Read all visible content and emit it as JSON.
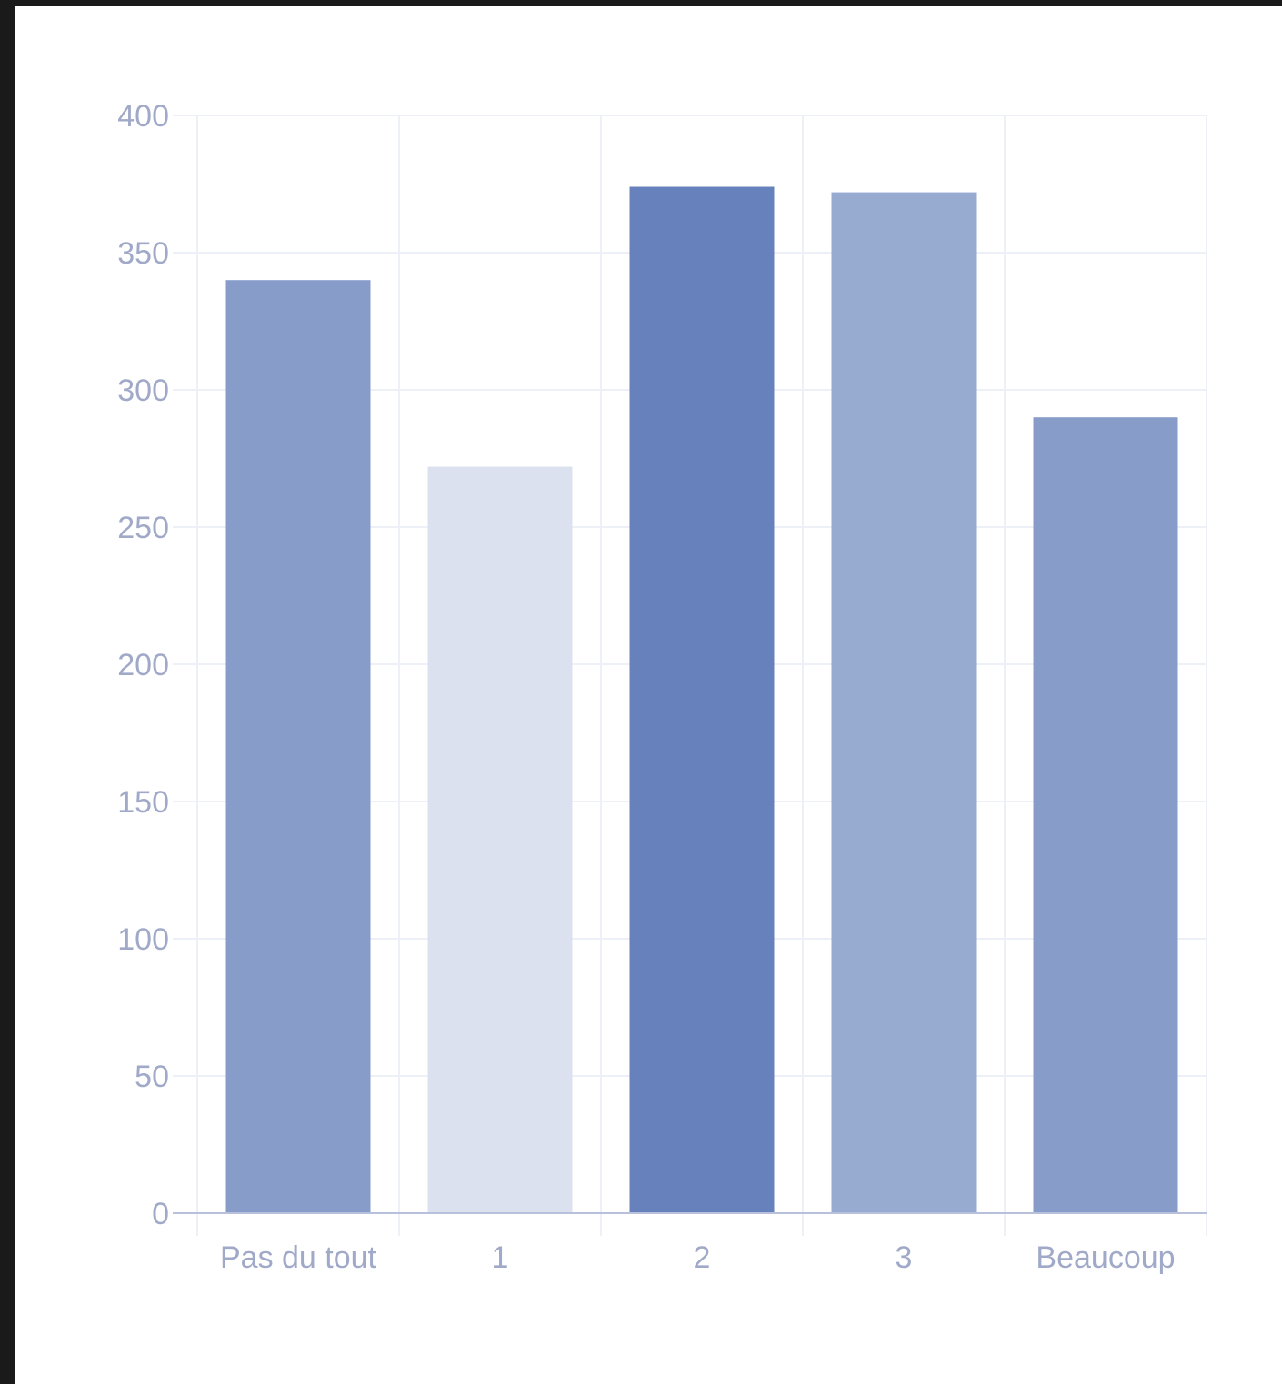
{
  "chart_data": {
    "type": "bar",
    "categories": [
      "Pas du tout",
      "1",
      "2",
      "3",
      "Beaucoup"
    ],
    "values": [
      340,
      272,
      374,
      372,
      290
    ],
    "colors": [
      "#879cc8",
      "#dbe1ef",
      "#6681bb",
      "#97aad0",
      "#879cc8"
    ],
    "yticks": [
      "0",
      "50",
      "100",
      "150",
      "200",
      "250",
      "300",
      "350",
      "400"
    ],
    "ylim": [
      0,
      400
    ],
    "title": "",
    "xlabel": "",
    "ylabel": "",
    "grid": true,
    "gridColor": "#eef0f7",
    "axisColor": "#b9c0dc"
  }
}
